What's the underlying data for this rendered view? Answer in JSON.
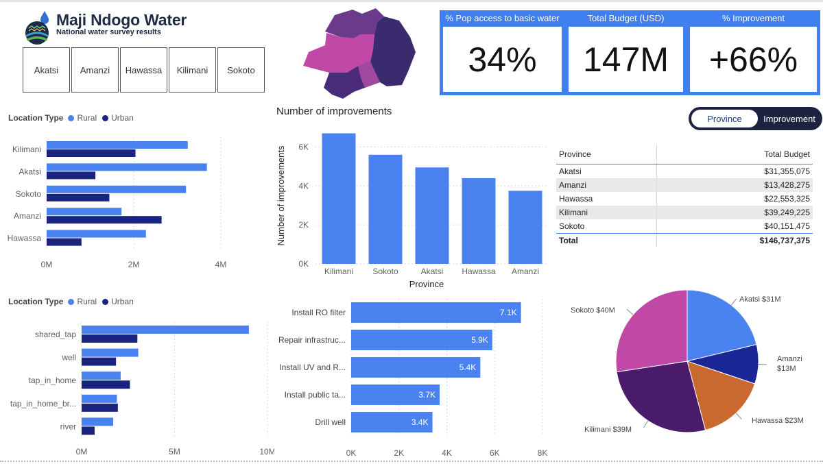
{
  "header": {
    "title": "Maji Ndogo Water",
    "subtitle": "National water survey results"
  },
  "slicer": {
    "items": [
      "Akatsi",
      "Amanzi",
      "Hawassa",
      "Kilimani",
      "Sokoto"
    ]
  },
  "kpis": [
    {
      "label": "% Pop access to basic water",
      "value": "34%"
    },
    {
      "label": "Total Budget (USD)",
      "value": "147M"
    },
    {
      "label": "% Improvement",
      "value": "+66%"
    }
  ],
  "colors": {
    "rural": "#4a83f0",
    "urban": "#1a237e",
    "kpi_blue": "#3f7ff0",
    "bar_blue": "#4a83f0",
    "toggle_dark": "#1c2340"
  },
  "legend": {
    "title": "Location Type",
    "rural": "Rural",
    "urban": "Urban"
  },
  "toggle": {
    "selected": "Province",
    "other": "Improvement"
  },
  "budget_table": {
    "col1": "Province",
    "col2": "Total Budget",
    "rows": [
      {
        "province": "Akatsi",
        "budget": "$31,355,075"
      },
      {
        "province": "Amanzi",
        "budget": "$13,428,275"
      },
      {
        "province": "Hawassa",
        "budget": "$22,553,325"
      },
      {
        "province": "Kilimani",
        "budget": "$39,249,225"
      },
      {
        "province": "Sokoto",
        "budget": "$40,151,475"
      }
    ],
    "total_label": "Total",
    "total_value": "$146,737,375"
  },
  "chart_data": [
    {
      "id": "province_location",
      "type": "bar",
      "orientation": "horizontal",
      "categories": [
        "Kilimani",
        "Akatsi",
        "Sokoto",
        "Amanzi",
        "Hawassa"
      ],
      "series": [
        {
          "name": "Rural",
          "values": [
            4.05,
            4.6,
            4.0,
            2.15,
            2.85
          ]
        },
        {
          "name": "Urban",
          "values": [
            2.55,
            1.4,
            1.8,
            3.3,
            1.0
          ]
        }
      ],
      "xticks": [
        "0M",
        "2M",
        "4M"
      ],
      "xlim": [
        0,
        5
      ],
      "grid": true
    },
    {
      "id": "improvements_by_province",
      "type": "bar",
      "title": "Number of improvements",
      "xlabel": "Province",
      "ylabel": "Number of improvements",
      "categories": [
        "Kilimani",
        "Sokoto",
        "Akatsi",
        "Hawassa",
        "Amanzi"
      ],
      "values": [
        6700,
        5600,
        4950,
        4400,
        3750
      ],
      "yticks": [
        "0K",
        "2K",
        "4K",
        "6K"
      ],
      "ylim": [
        0,
        7000
      ],
      "grid": true
    },
    {
      "id": "source_location",
      "type": "bar",
      "orientation": "horizontal",
      "categories": [
        "shared_tap",
        "well",
        "tap_in_home",
        "tap_in_home_br...",
        "river"
      ],
      "series": [
        {
          "name": "Rural",
          "values": [
            9.0,
            3.05,
            2.1,
            1.9,
            1.7
          ]
        },
        {
          "name": "Urban",
          "values": [
            3.0,
            1.85,
            2.6,
            1.95,
            0.7
          ]
        }
      ],
      "xticks": [
        "0M",
        "5M",
        "10M"
      ],
      "xlim": [
        0,
        10
      ],
      "grid": true
    },
    {
      "id": "improvement_types",
      "type": "bar",
      "orientation": "horizontal",
      "categories": [
        "Install RO filter",
        "Repair infrastruc...",
        "Install UV and R...",
        "Install public ta...",
        "Drill well"
      ],
      "values": [
        7.1,
        5.9,
        5.4,
        3.7,
        3.4
      ],
      "data_labels": [
        "7.1K",
        "5.9K",
        "5.4K",
        "3.7K",
        "3.4K"
      ],
      "xticks": [
        "0K",
        "2K",
        "4K",
        "6K",
        "8K"
      ],
      "xlim": [
        0,
        8
      ],
      "grid": true
    },
    {
      "id": "budget_pie",
      "type": "pie",
      "slices": [
        {
          "label": "Akatsi $31M",
          "value": 31,
          "color": "#4a83f0"
        },
        {
          "label": "Amanzi\n$13M",
          "value": 13,
          "color": "#1a2596"
        },
        {
          "label": "Hawassa $23M",
          "value": 23,
          "color": "#c9682f"
        },
        {
          "label": "Kilimani $39M",
          "value": 39,
          "color": "#4a1a6b"
        },
        {
          "label": "Sokoto $40M",
          "value": 40,
          "color": "#c048a6"
        }
      ]
    }
  ]
}
